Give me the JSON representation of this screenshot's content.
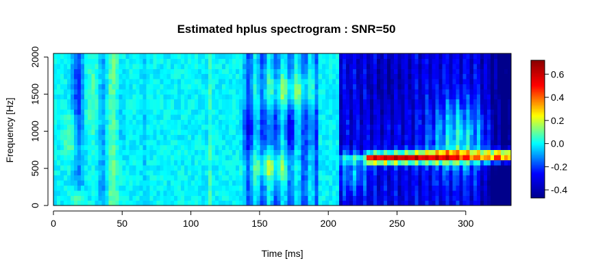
{
  "chart_data": {
    "type": "heatmap",
    "title": "Estimated hplus spectrogram : SNR=50",
    "xlabel": "Time [ms]",
    "ylabel": "Frequency [Hz]",
    "xlim": [
      0,
      333
    ],
    "ylim": [
      0,
      2048
    ],
    "x_ticks": [
      0,
      50,
      100,
      150,
      200,
      250,
      300
    ],
    "y_ticks": [
      0,
      500,
      1000,
      1500,
      2000
    ],
    "colorbar": {
      "range": [
        -0.47,
        0.72
      ],
      "ticks": [
        -0.4,
        -0.2,
        0.0,
        0.2,
        0.4,
        0.6
      ],
      "tick_labels": [
        "-0.4",
        "-0.2",
        "0.0",
        "0.2",
        "0.4",
        "0.6"
      ],
      "colormap": [
        "#00008b",
        "#0000ff",
        "#00ffff",
        "#ffff00",
        "#ff0000",
        "#8b0000"
      ]
    },
    "background_value": 0.0,
    "grid": false
  }
}
